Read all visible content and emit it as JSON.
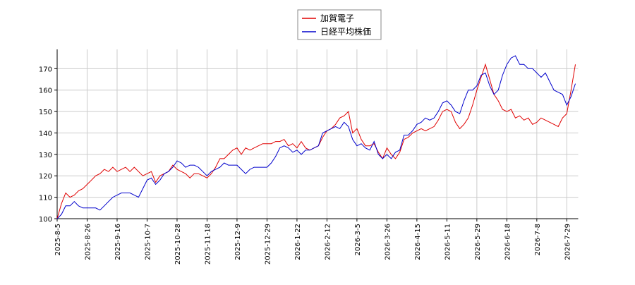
{
  "chart_data": {
    "type": "line",
    "x": [
      "2025-8-5",
      null,
      null,
      null,
      null,
      null,
      null,
      "2025-8-26",
      null,
      null,
      null,
      null,
      null,
      null,
      "2025-9-16",
      null,
      null,
      null,
      null,
      null,
      null,
      "2025-10-7",
      null,
      null,
      null,
      null,
      null,
      null,
      "2025-10-28",
      null,
      null,
      null,
      null,
      null,
      null,
      "2025-11-18",
      null,
      null,
      null,
      null,
      null,
      null,
      "2025-12-9",
      null,
      null,
      null,
      null,
      null,
      null,
      "2025-12-29",
      null,
      null,
      null,
      null,
      null,
      null,
      "2026-1-22",
      null,
      null,
      null,
      null,
      null,
      null,
      "2026-2-12",
      null,
      null,
      null,
      null,
      null,
      null,
      "2026-3-5",
      null,
      null,
      null,
      null,
      null,
      null,
      "2026-3-26",
      null,
      null,
      null,
      null,
      null,
      null,
      "2026-4-15",
      null,
      null,
      null,
      null,
      null,
      null,
      "2026-5-11",
      null,
      null,
      null,
      null,
      null,
      null,
      "2026-5-29",
      null,
      null,
      null,
      null,
      null,
      null,
      "2026-6-18",
      null,
      null,
      null,
      null,
      null,
      null,
      "2026-7-8",
      null,
      null,
      null,
      null,
      null,
      null,
      "2026-7-29",
      null,
      null
    ],
    "series": [
      {
        "name": "加賀電子",
        "color": "#e00000",
        "values": [
          100,
          107,
          112,
          110,
          111,
          113,
          114,
          116,
          118,
          120,
          121,
          123,
          122,
          124,
          122,
          123,
          124,
          122,
          124,
          122,
          120,
          121,
          122,
          117,
          120,
          121,
          122,
          125,
          123,
          122,
          121,
          119,
          121,
          121,
          120,
          119,
          121,
          124,
          128,
          128,
          130,
          132,
          133,
          130,
          133,
          132,
          133,
          134,
          135,
          135,
          135,
          136,
          136,
          137,
          134,
          135,
          133,
          136,
          133,
          132,
          133,
          134,
          138,
          141,
          142,
          144,
          147,
          148,
          150,
          140,
          142,
          137,
          134,
          134,
          135,
          131,
          128,
          133,
          130,
          128,
          131,
          137,
          138,
          140,
          141,
          142,
          141,
          142,
          143,
          146,
          150,
          151,
          150,
          145,
          142,
          144,
          147,
          153,
          160,
          166,
          172,
          165,
          158,
          155,
          151,
          150,
          151,
          147,
          148,
          146,
          147,
          144,
          145,
          147,
          146,
          145,
          144,
          143,
          147,
          149,
          160,
          172
        ]
      },
      {
        "name": "日経平均株価",
        "color": "#0000cc",
        "values": [
          100,
          102,
          106,
          106,
          108,
          106,
          105,
          105,
          105,
          105,
          104,
          106,
          108,
          110,
          111,
          112,
          112,
          112,
          111,
          110,
          114,
          118,
          119,
          116,
          118,
          121,
          122,
          124,
          127,
          126,
          124,
          125,
          125,
          124,
          122,
          120,
          122,
          123,
          124,
          126,
          125,
          125,
          125,
          123,
          121,
          123,
          124,
          124,
          124,
          124,
          126,
          129,
          133,
          134,
          133,
          131,
          132,
          130,
          132,
          132,
          133,
          134,
          140,
          141,
          142,
          143,
          142,
          145,
          143,
          137,
          134,
          135,
          133,
          132,
          136,
          130,
          128,
          130,
          128,
          131,
          132,
          139,
          139,
          141,
          144,
          145,
          147,
          146,
          147,
          150,
          154,
          155,
          153,
          150,
          149,
          155,
          160,
          160,
          162,
          167,
          168,
          162,
          158,
          160,
          167,
          172,
          175,
          176,
          172,
          172,
          170,
          170,
          168,
          166,
          168,
          164,
          160,
          159,
          158,
          153,
          157,
          163
        ]
      }
    ],
    "ylim": [
      100,
      179
    ],
    "yticks": [
      100,
      110,
      120,
      130,
      140,
      150,
      160,
      170
    ],
    "grid": true,
    "legend": "top"
  }
}
